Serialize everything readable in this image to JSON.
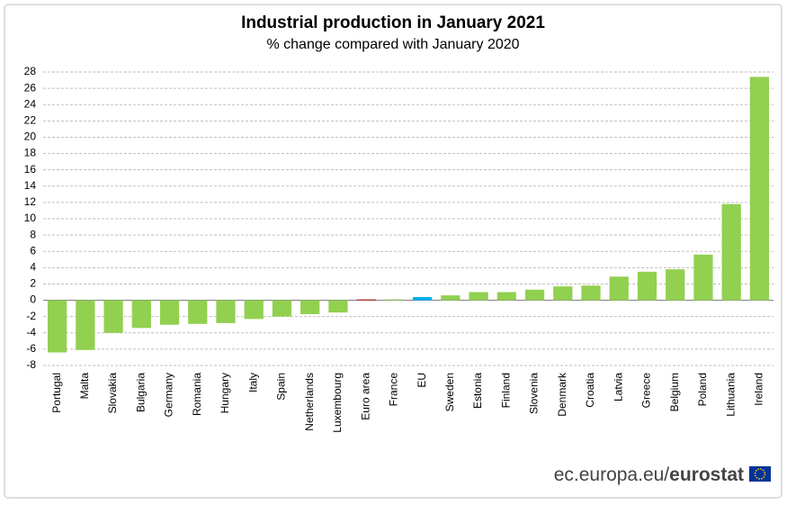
{
  "chart_data": {
    "type": "bar",
    "title": "Industrial production in January 2021",
    "subtitle": "% change compared with January 2020",
    "categories": [
      "Portugal",
      "Malta",
      "Slovakia",
      "Bulgaria",
      "Germany",
      "Romania",
      "Hungary",
      "Italy",
      "Spain",
      "Netherlands",
      "Luxembourg",
      "Euro area",
      "France",
      "EU",
      "Sweden",
      "Estonia",
      "Finland",
      "Slovenia",
      "Denmark",
      "Croatia",
      "Latvia",
      "Greece",
      "Belgium",
      "Poland",
      "Lithuania",
      "Ireland"
    ],
    "values": [
      -6.4,
      -6.1,
      -4.0,
      -3.4,
      -3.0,
      -2.9,
      -2.8,
      -2.3,
      -2.0,
      -1.7,
      -1.5,
      0.1,
      0.1,
      0.4,
      0.6,
      1.0,
      1.0,
      1.3,
      1.7,
      1.8,
      2.9,
      3.5,
      3.8,
      5.6,
      11.8,
      27.4
    ],
    "colors": [
      "#92d050",
      "#92d050",
      "#92d050",
      "#92d050",
      "#92d050",
      "#92d050",
      "#92d050",
      "#92d050",
      "#92d050",
      "#92d050",
      "#92d050",
      "#c00000",
      "#92d050",
      "#00b0f0",
      "#92d050",
      "#92d050",
      "#92d050",
      "#92d050",
      "#92d050",
      "#92d050",
      "#92d050",
      "#92d050",
      "#92d050",
      "#92d050",
      "#92d050",
      "#92d050"
    ],
    "ylim": [
      -8,
      28
    ],
    "yticks": [
      -8,
      -6,
      -4,
      -2,
      0,
      2,
      4,
      6,
      8,
      10,
      12,
      14,
      16,
      18,
      20,
      22,
      24,
      26,
      28
    ],
    "grid": true,
    "source_prefix": "ec.europa.eu/",
    "source_brand": "eurostat"
  }
}
